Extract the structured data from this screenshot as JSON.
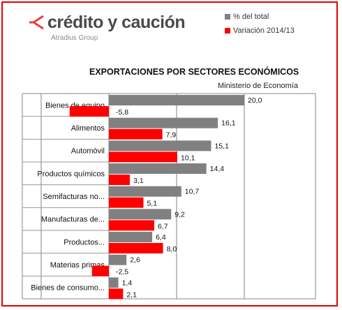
{
  "brand": {
    "name": "crédito y caución",
    "subtitle": "Atradius Group",
    "logo_color": "#e8413a"
  },
  "legend": {
    "items": [
      {
        "label": "% del total",
        "color": "#808080"
      },
      {
        "label": "Variación 2014/13",
        "color": "#ff0000"
      }
    ]
  },
  "chart_data": {
    "type": "bar",
    "orientation": "horizontal",
    "title": "EXPORTACIONES POR SECTORES ECONÓMICOS",
    "subtitle": "Ministerio de Economía",
    "categories": [
      "Bienes de equipo",
      "Alimentos",
      "Automóvil",
      "Productos químicos",
      "Semifacturas no...",
      "Manufacturas  de...",
      "Productos...",
      "Materias primas",
      "Bienes de consumo..."
    ],
    "series": [
      {
        "name": "% del total",
        "color": "#808080",
        "values": [
          20.0,
          16.1,
          15.1,
          14.4,
          10.7,
          9.2,
          6.4,
          2.6,
          1.4
        ],
        "labels": [
          "20,0",
          "16,1",
          "15,1",
          "14,4",
          "10,7",
          "9,2",
          "6,4",
          "2,6",
          "1,4"
        ]
      },
      {
        "name": "Variación 2014/13",
        "color": "#ff0000",
        "values": [
          -5.8,
          7.9,
          10.1,
          3.1,
          5.1,
          6.7,
          8.0,
          -2.5,
          2.1
        ],
        "labels": [
          "-5,8",
          "7,9",
          "10,1",
          "3,1",
          "5,1",
          "6,7",
          "8,0",
          "-2,5",
          "2,1"
        ]
      }
    ],
    "xlim": [
      -10,
      20
    ],
    "grid": true,
    "legend_position": "top-right"
  }
}
